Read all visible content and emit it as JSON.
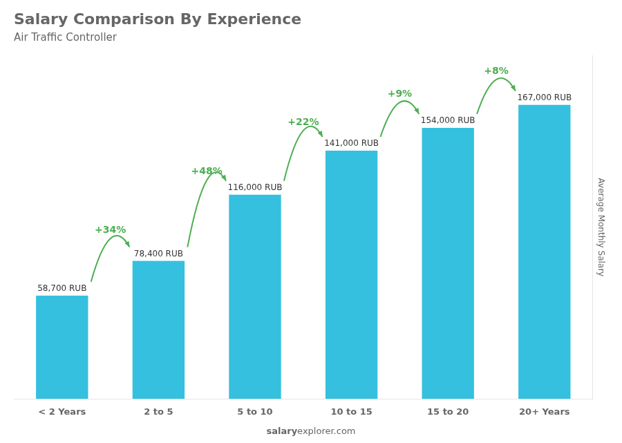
{
  "chart_data": {
    "type": "bar",
    "title": "Salary Comparison By Experience",
    "subtitle": "Air Traffic Controller",
    "categories": [
      "< 2 Years",
      "2 to 5",
      "5 to 10",
      "10 to 15",
      "15 to 20",
      "20+ Years"
    ],
    "values": [
      58700,
      78400,
      116000,
      141000,
      154000,
      167000
    ],
    "value_labels": [
      "58,700 RUB",
      "78,400 RUB",
      "116,000 RUB",
      "141,000 RUB",
      "154,000 RUB",
      "167,000 RUB"
    ],
    "data_labels": true,
    "annotations": [
      "+34%",
      "+48%",
      "+22%",
      "+9%",
      "+8%"
    ],
    "ylabel": "Average Monthly Salary",
    "watermark": [
      "salary",
      "explorer.com"
    ],
    "color": "#35C0DF",
    "ylim": [
      0,
      195000
    ],
    "tick_labels": "x",
    "grid": false
  }
}
